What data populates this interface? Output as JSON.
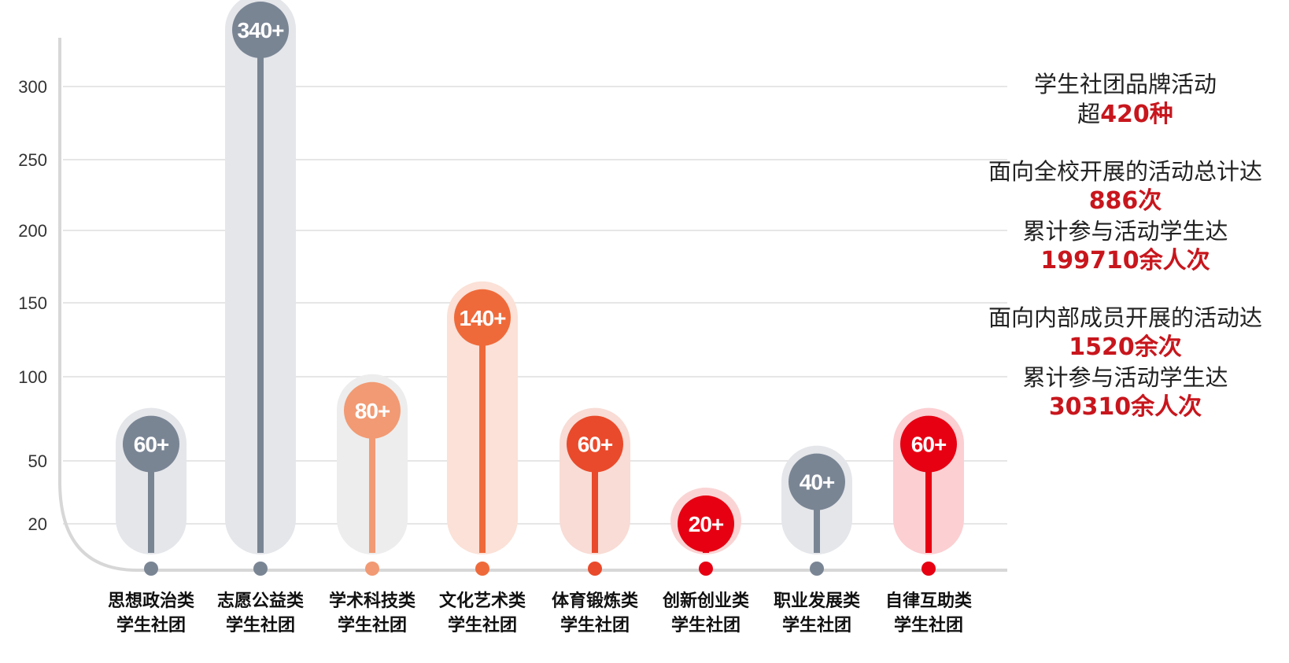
{
  "chart_data": {
    "type": "bar",
    "y_ticks": [
      20,
      50,
      100,
      150,
      200,
      250,
      300
    ],
    "grid": true,
    "categories": [
      {
        "line1": "思想政治类",
        "line2": "学生社团"
      },
      {
        "line1": "志愿公益类",
        "line2": "学生社团"
      },
      {
        "line1": "学术科技类",
        "line2": "学生社团"
      },
      {
        "line1": "文化艺术类",
        "line2": "学生社团"
      },
      {
        "line1": "体育锻炼类",
        "line2": "学生社团"
      },
      {
        "line1": "创新创业类",
        "line2": "学生社团"
      },
      {
        "line1": "职业发展类",
        "line2": "学生社团"
      },
      {
        "line1": "自律互助类",
        "line2": "学生社团"
      }
    ],
    "values": [
      60,
      340,
      80,
      140,
      60,
      20,
      40,
      60
    ],
    "labels": [
      "60+",
      "340+",
      "80+",
      "140+",
      "60+",
      "20+",
      "40+",
      "60+"
    ],
    "colors": [
      "#7a8594",
      "#7a8594",
      "#f29a73",
      "#ef6a3a",
      "#e94a2b",
      "#e60012",
      "#7a8594",
      "#e60012"
    ],
    "pill_colors": [
      "#e4e6ea",
      "#e4e6ea",
      "#ededed",
      "#fbe1d7",
      "#f8dcd5",
      "#fad4d4",
      "#e4e6ea",
      "#fccfd2"
    ]
  },
  "side_panel": {
    "brand_line": "学生社团品牌活动",
    "brand_prefix": "超",
    "brand_value": "420种",
    "school_line": "面向全校开展的活动总计达",
    "school_value": "886次",
    "school_people_line": "累计参与活动学生达",
    "school_people_value": "199710余人次",
    "internal_line": "面向内部成员开展的活动达",
    "internal_value": "1520余次",
    "internal_people_line": "累计参与活动学生达",
    "internal_people_value": "30310余人次"
  }
}
